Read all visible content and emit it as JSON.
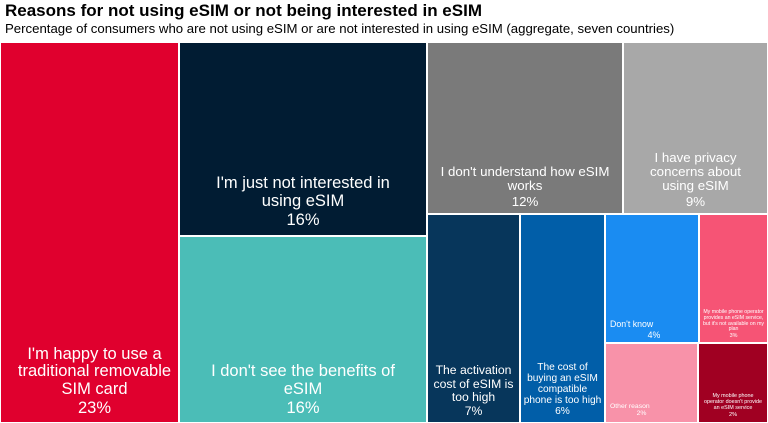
{
  "title": "Reasons for not using eSIM or not being interested in eSIM",
  "subtitle": "Percentage of consumers who are not using eSIM or are not interested in using eSIM (aggregate, seven countries)",
  "chart_data": {
    "type": "treemap",
    "title": "Reasons for not using eSIM or not being interested in eSIM",
    "subtitle": "Percentage of consumers who are not using eSIM or are not interested in using eSIM (aggregate, seven countries)",
    "unit": "%",
    "items": [
      {
        "label": "I'm happy to use a traditional removable SIM card",
        "value": 23,
        "value_label": "23%",
        "color": "#e0002e"
      },
      {
        "label": "I'm just not interested in using eSIM",
        "value": 16,
        "value_label": "16%",
        "color": "#011c33"
      },
      {
        "label": "I don't see the benefits of eSIM",
        "value": 16,
        "value_label": "16%",
        "color": "#4bbdb7"
      },
      {
        "label": "I don't understand how eSIM works",
        "value": 12,
        "value_label": "12%",
        "color": "#7a7a7a"
      },
      {
        "label": "I have privacy concerns about using eSIM",
        "value": 9,
        "value_label": "9%",
        "color": "#a8a8a8"
      },
      {
        "label": "The activation cost of eSIM is too high",
        "value": 7,
        "value_label": "7%",
        "color": "#07365b"
      },
      {
        "label": "The cost of buying an eSIM compatible phone is too high",
        "value": 6,
        "value_label": "6%",
        "color": "#015ea8"
      },
      {
        "label": "Don't know",
        "value": 4,
        "value_label": "4%",
        "color": "#1a8cf2"
      },
      {
        "label": "My mobile phone operator provides an eSIM service, but it's not available on my plan",
        "value": 3,
        "value_label": "3%",
        "color": "#f65475"
      },
      {
        "label": "Other reason",
        "value": 2,
        "value_label": "2%",
        "color": "#f892a9"
      },
      {
        "label": "My mobile phone operator doesn't provide an eSIM service",
        "value": 2,
        "value_label": "2%",
        "color": "#a00022"
      }
    ]
  }
}
